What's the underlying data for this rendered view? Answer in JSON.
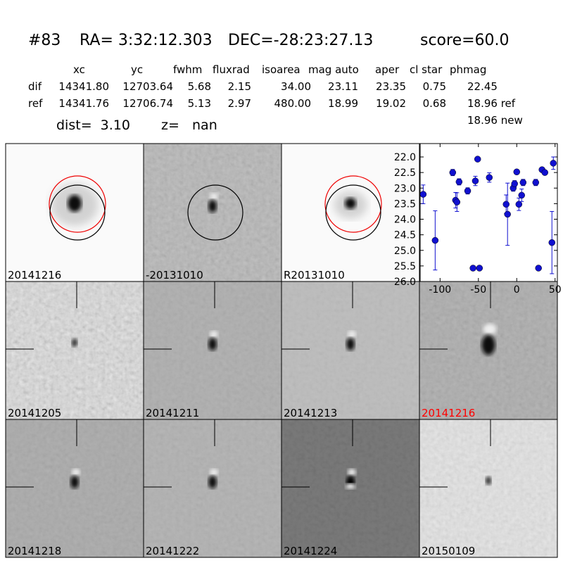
{
  "header": {
    "id": "#83",
    "ra": "RA= 3:32:12.303",
    "dec": "DEC=-28:23:27.13",
    "score": "score=60.0"
  },
  "table": {
    "columns": [
      "xc",
      "yc",
      "fwhm",
      "fluxrad",
      "isoarea",
      "mag auto",
      "aper",
      "cl star",
      "phmag"
    ],
    "rows": [
      [
        "dif",
        "14341.80",
        "12703.64",
        "5.68",
        "2.15",
        "34.00",
        "23.11",
        "23.35",
        "0.75",
        "22.45"
      ],
      [
        "ref",
        "14341.76",
        "12706.74",
        "5.13",
        "2.97",
        "480.00",
        "18.99",
        "19.02",
        "0.68",
        "18.96 ref"
      ]
    ]
  },
  "dist": "dist=  3.10",
  "z": "z=   nan",
  "phmag_new": "18.96 new",
  "stamps": [
    {
      "label": "20141216"
    },
    {
      "label": "-20131010"
    },
    {
      "label": "R20131010"
    },
    {
      "label": "20141205"
    },
    {
      "label": "20141211"
    },
    {
      "label": "20141213"
    },
    {
      "label": "20141216",
      "color": "red"
    },
    {
      "label": "20141218"
    },
    {
      "label": "20141222"
    },
    {
      "label": "20141224"
    },
    {
      "label": "20150109"
    }
  ],
  "chart_data": {
    "type": "scatter",
    "color": "#1010d0",
    "x": [
      -122,
      -106.4,
      -83.5,
      -79.8,
      -78,
      -75.2,
      -64,
      -57,
      -54,
      -51,
      -48.6,
      -35.8,
      -13.8,
      -12,
      -4.6,
      -2.8,
      0,
      2.8,
      6.4,
      8.3,
      24.8,
      28.4,
      33,
      36.7,
      45.9,
      47.7
    ],
    "values": [
      23.2,
      24.68,
      22.5,
      23.39,
      23.45,
      22.8,
      23.09,
      25.57,
      22.77,
      22.07,
      25.57,
      22.66,
      23.52,
      23.84,
      23.0,
      22.86,
      22.48,
      23.52,
      23.23,
      22.82,
      22.82,
      25.57,
      22.41,
      22.5,
      24.75,
      22.2
    ],
    "errors": [
      0.3,
      0.95,
      0.1,
      0.25,
      0.3,
      0.1,
      0.1,
      0.05,
      0.15,
      0.05,
      0.05,
      0.15,
      0.3,
      1.0,
      0.1,
      0.1,
      0.07,
      0.2,
      0.2,
      0.1,
      0.1,
      0.05,
      0.05,
      0.05,
      1.0,
      0.2
    ],
    "xlim": [
      -126,
      53
    ],
    "xticks": [
      -100,
      -50,
      0,
      50
    ],
    "ylim": [
      26.0,
      21.57
    ],
    "yticks": [
      {
        "value": 22,
        "label": "22.0"
      },
      22.5,
      {
        "value": 23,
        "label": "23.0"
      },
      23.5,
      {
        "value": 24,
        "label": "24.0"
      },
      24.5,
      {
        "value": 25,
        "label": "25.0"
      },
      25.5,
      {
        "value": 26,
        "label": "26.0"
      }
    ]
  }
}
